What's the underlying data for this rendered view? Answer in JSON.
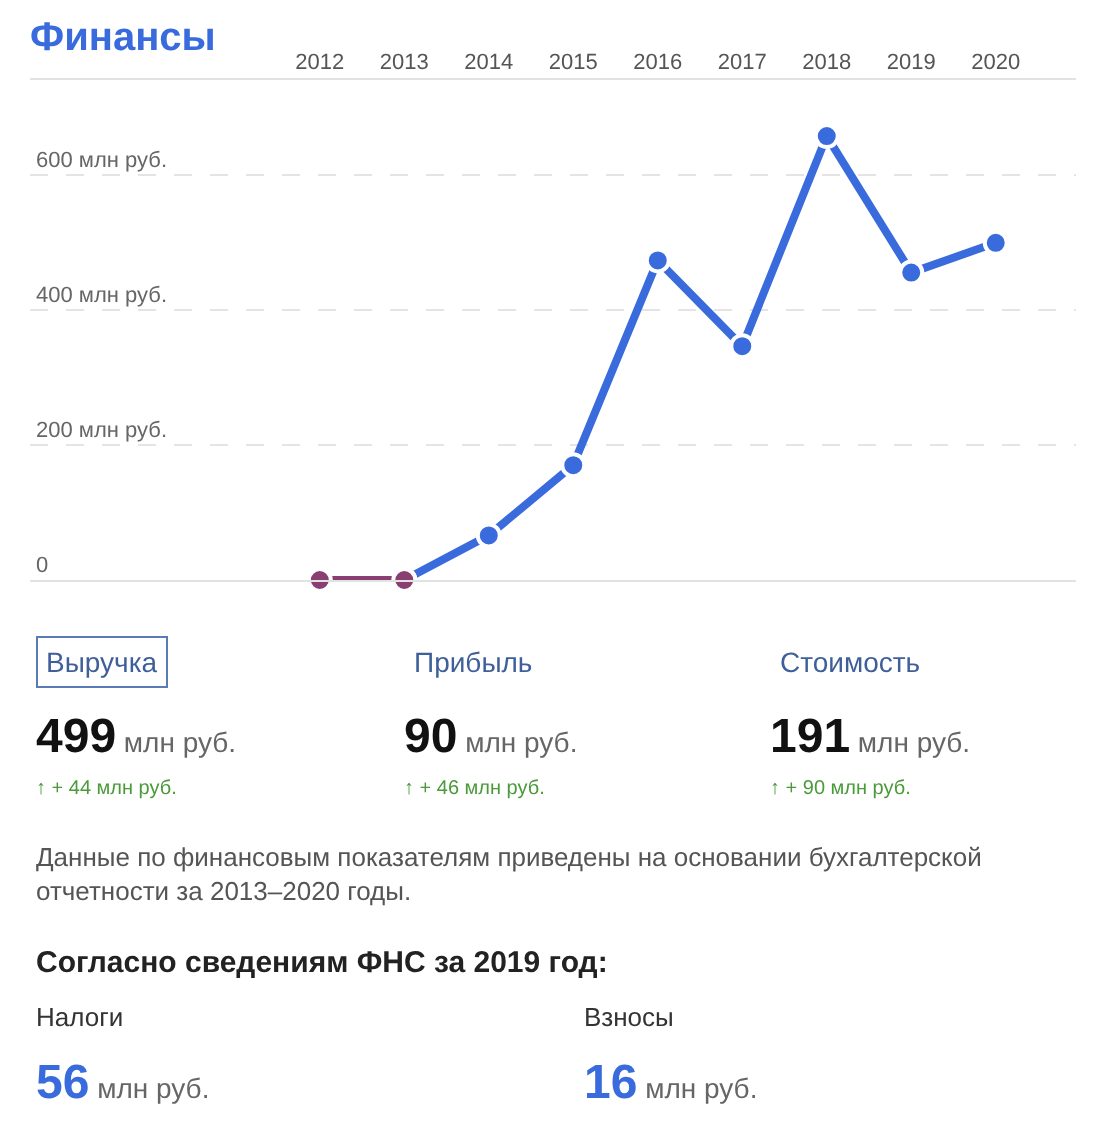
{
  "chart_data": {
    "type": "line",
    "title": "Финансы",
    "categories": [
      "2012",
      "2013",
      "2014",
      "2015",
      "2016",
      "2017",
      "2018",
      "2019",
      "2020"
    ],
    "series": [
      {
        "color": "#3a6bdc",
        "values": [
          null,
          0,
          66,
          170,
          473,
          346,
          657,
          455,
          499
        ]
      },
      {
        "color": "#8a3f72",
        "values": [
          0,
          0,
          null,
          null,
          null,
          null,
          null,
          null,
          null
        ]
      }
    ],
    "ylim": [
      0,
      740
    ],
    "yticks": [
      0,
      {
        "value": 200,
        "label": "200 млн руб."
      },
      {
        "value": 400,
        "label": "400 млн руб."
      },
      {
        "value": 600,
        "label": "600 млн руб."
      }
    ],
    "grid": "y",
    "marker": "circle",
    "line_style": "solid",
    "annotations": [
      "Выручка",
      "499 млн руб.",
      "↑ + 44 млн руб.",
      "Прибыль",
      "90 млн руб.",
      "↑ + 46 млн руб.",
      "Стоимость",
      "191 млн руб.",
      "↑ + 90 млн руб.",
      "Данные по финансовым показателям приведены на основании бухгалтерской отчетности за 2013–2020 годы.",
      "Согласно сведениям ФНС за 2019 год:",
      "Налоги",
      "56 млн руб.",
      "Взносы",
      "16 млн руб."
    ]
  }
}
